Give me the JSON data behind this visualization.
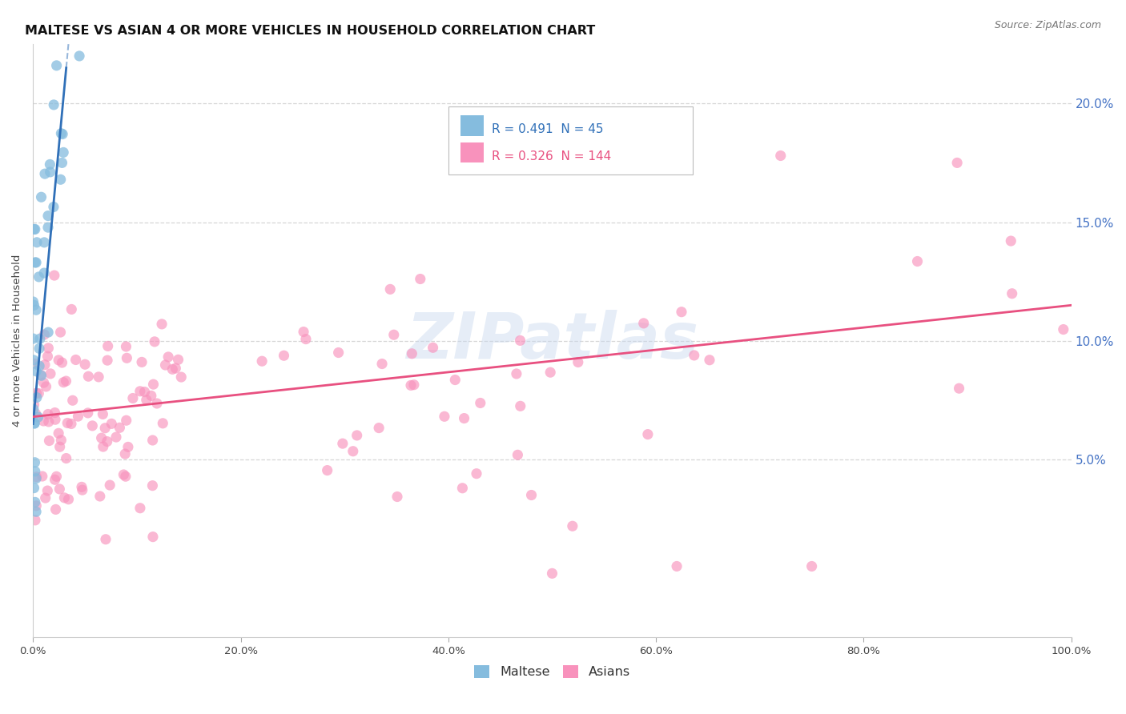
{
  "title": "MALTESE VS ASIAN 4 OR MORE VEHICLES IN HOUSEHOLD CORRELATION CHART",
  "source": "Source: ZipAtlas.com",
  "ylabel": "4 or more Vehicles in Household",
  "watermark": "ZIPatlas",
  "legend_maltese_R": "0.491",
  "legend_maltese_N": "45",
  "legend_asian_R": "0.326",
  "legend_asian_N": "144",
  "maltese_color": "#85bcde",
  "asian_color": "#f892bc",
  "maltese_trend_color": "#3070b8",
  "asian_trend_color": "#e85080",
  "maltese_trend": [
    0.0,
    0.065,
    0.032,
    0.215
  ],
  "asian_trend": [
    0.0,
    0.068,
    1.0,
    0.115
  ],
  "xlim": [
    0.0,
    1.0
  ],
  "ylim": [
    -0.025,
    0.225
  ],
  "yticks": [
    0.05,
    0.1,
    0.15,
    0.2
  ],
  "ytick_labels": [
    "5.0%",
    "10.0%",
    "15.0%",
    "20.0%"
  ],
  "xticks": [
    0.0,
    0.2,
    0.4,
    0.6,
    0.8,
    1.0
  ],
  "xtick_labels": [
    "0.0%",
    "20.0%",
    "40.0%",
    "60.0%",
    "80.0%",
    "100.0%"
  ],
  "bg_color": "#ffffff",
  "grid_color": "#cccccc",
  "title_fontsize": 11.5,
  "right_ytick_color": "#4472c4"
}
